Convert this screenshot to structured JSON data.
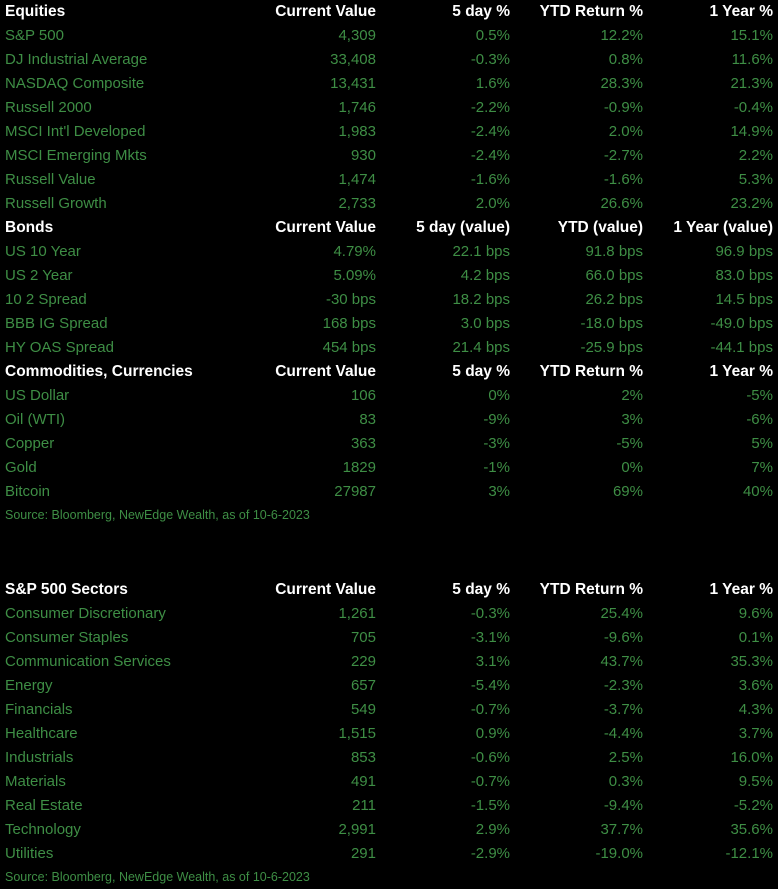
{
  "colors": {
    "page_background": "#000000",
    "header_background": "#000000",
    "header_text": "#ffffff",
    "data_text": "#3e8e45",
    "source_text": "#3e8e45"
  },
  "table1": {
    "sections": [
      {
        "title": "Equities",
        "columns": [
          "Current Value",
          "5 day %",
          "YTD Return %",
          "1 Year %"
        ],
        "rows": [
          [
            "S&P 500",
            "4,309",
            "0.5%",
            "12.2%",
            "15.1%"
          ],
          [
            "DJ Industrial Average",
            "33,408",
            "-0.3%",
            "0.8%",
            "11.6%"
          ],
          [
            "NASDAQ Composite",
            "13,431",
            "1.6%",
            "28.3%",
            "21.3%"
          ],
          [
            "Russell 2000",
            "1,746",
            "-2.2%",
            "-0.9%",
            "-0.4%"
          ],
          [
            "MSCI Int'l Developed",
            "1,983",
            "-2.4%",
            "2.0%",
            "14.9%"
          ],
          [
            "MSCI Emerging Mkts",
            "930",
            "-2.4%",
            "-2.7%",
            "2.2%"
          ],
          [
            "Russell Value",
            "1,474",
            "-1.6%",
            "-1.6%",
            "5.3%"
          ],
          [
            "Russell Growth",
            "2,733",
            "2.0%",
            "26.6%",
            "23.2%"
          ]
        ]
      },
      {
        "title": "Bonds",
        "columns": [
          "Current Value",
          "5 day (value)",
          "YTD (value)",
          "1 Year (value)"
        ],
        "rows": [
          [
            "US 10 Year",
            "4.79%",
            "22.1 bps",
            "91.8 bps",
            "96.9 bps"
          ],
          [
            "US 2 Year",
            "5.09%",
            "4.2 bps",
            "66.0 bps",
            "83.0 bps"
          ],
          [
            "10 2 Spread",
            "-30 bps",
            "18.2 bps",
            "26.2 bps",
            "14.5 bps"
          ],
          [
            "BBB IG Spread",
            "168 bps",
            "3.0 bps",
            "-18.0 bps",
            "-49.0 bps"
          ],
          [
            "HY OAS Spread",
            "454 bps",
            "21.4 bps",
            "-25.9 bps",
            "-44.1 bps"
          ]
        ]
      },
      {
        "title": "Commodities, Currencies",
        "columns": [
          "Current Value",
          "5 day %",
          "YTD Return %",
          "1 Year %"
        ],
        "rows": [
          [
            "US Dollar",
            "106",
            "0%",
            "2%",
            "-5%"
          ],
          [
            "Oil (WTI)",
            "83",
            "-9%",
            "3%",
            "-6%"
          ],
          [
            "Copper",
            "363",
            "-3%",
            "-5%",
            "5%"
          ],
          [
            "Gold",
            "1829",
            "-1%",
            "0%",
            "7%"
          ],
          [
            "Bitcoin",
            "27987",
            "3%",
            "69%",
            "40%"
          ]
        ]
      }
    ],
    "source": "Source: Bloomberg, NewEdge Wealth, as of 10-6-2023"
  },
  "table2": {
    "sections": [
      {
        "title": "S&P 500 Sectors",
        "columns": [
          "Current Value",
          "5 day %",
          "YTD Return %",
          "1 Year %"
        ],
        "rows": [
          [
            "Consumer Discretionary",
            "1,261",
            "-0.3%",
            "25.4%",
            "9.6%"
          ],
          [
            "Consumer Staples",
            "705",
            "-3.1%",
            "-9.6%",
            "0.1%"
          ],
          [
            "Communication Services",
            "229",
            "3.1%",
            "43.7%",
            "35.3%"
          ],
          [
            "Energy",
            "657",
            "-5.4%",
            "-2.3%",
            "3.6%"
          ],
          [
            "Financials",
            "549",
            "-0.7%",
            "-3.7%",
            "4.3%"
          ],
          [
            "Healthcare",
            "1,515",
            "0.9%",
            "-4.4%",
            "3.7%"
          ],
          [
            "Industrials",
            "853",
            "-0.6%",
            "2.5%",
            "16.0%"
          ],
          [
            "Materials",
            "491",
            "-0.7%",
            "0.3%",
            "9.5%"
          ],
          [
            "Real Estate",
            "211",
            "-1.5%",
            "-9.4%",
            "-5.2%"
          ],
          [
            "Technology",
            "2,991",
            "2.9%",
            "37.7%",
            "35.6%"
          ],
          [
            "Utilities",
            "291",
            "-2.9%",
            "-19.0%",
            "-12.1%"
          ]
        ]
      }
    ],
    "source": "Source: Bloomberg, NewEdge Wealth, as of 10-6-2023"
  }
}
